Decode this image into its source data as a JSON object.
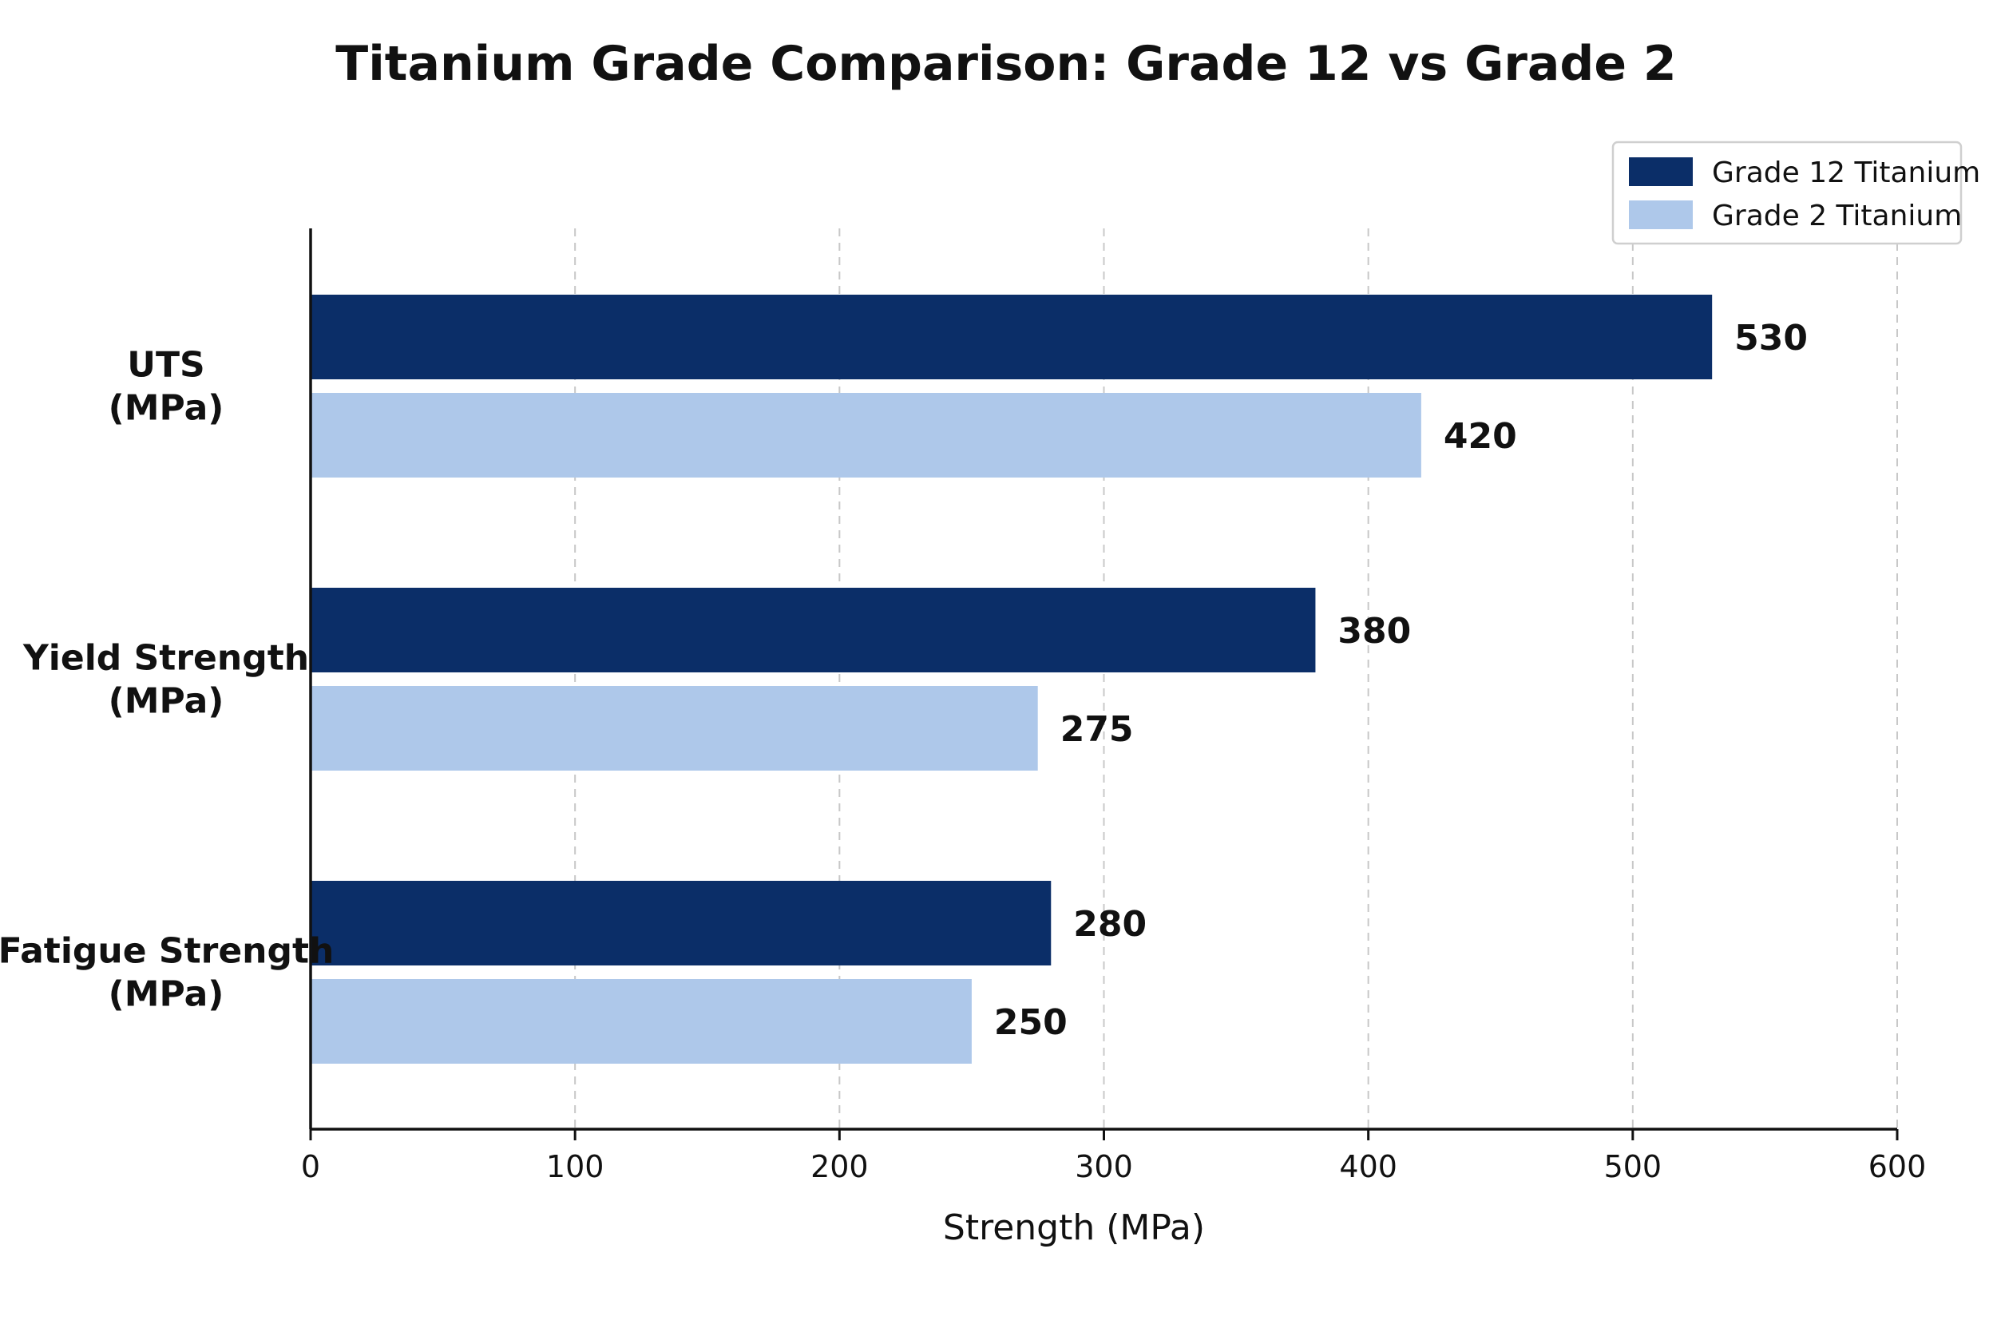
{
  "chart_data": {
    "type": "bar",
    "orientation": "horizontal",
    "title": "Titanium Grade Comparison: Grade 12 vs Grade 2",
    "xlabel": "Strength (MPa)",
    "ylabel": "",
    "categories": [
      [
        "UTS",
        "(MPa)"
      ],
      [
        "Yield Strength",
        "(MPa)"
      ],
      [
        "Fatigue Strength",
        "(MPa)"
      ]
    ],
    "series": [
      {
        "name": "Grade 12 Titanium",
        "values": [
          530,
          380,
          280
        ],
        "color": "#0b2e68"
      },
      {
        "name": "Grade 2 Titanium",
        "values": [
          420,
          275,
          250
        ],
        "color": "#aec8ea"
      }
    ],
    "xlim": [
      0,
      600
    ],
    "xticks": [
      0,
      100,
      200,
      300,
      400,
      500,
      600
    ],
    "grid": "vertical-dashed",
    "legend_position": "top-right",
    "data_labels": true
  }
}
